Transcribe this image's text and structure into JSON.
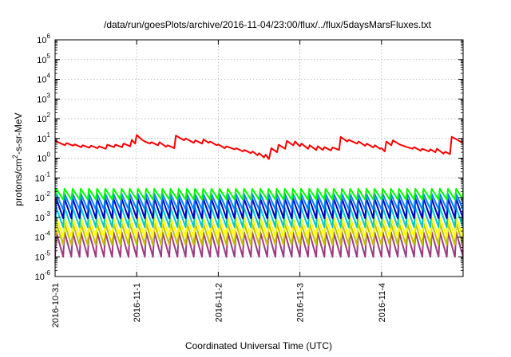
{
  "chart_data": {
    "type": "line",
    "title": "/data/run/goesPlots/archive/2016-11-04/23:00/flux/../flux/5daysMarsFluxes.txt",
    "xlabel": "Coordinated Universal Time (UTC)",
    "ylabel_parts": [
      "protons/cm",
      "2",
      "-s-sr-MeV"
    ],
    "yscale": "log",
    "ylim_exp": [
      -6,
      6
    ],
    "y_ticks": [
      {
        "base": "10",
        "exp": "-6"
      },
      {
        "base": "10",
        "exp": "-5"
      },
      {
        "base": "10",
        "exp": "-4"
      },
      {
        "base": "10",
        "exp": "-3"
      },
      {
        "base": "10",
        "exp": "-2"
      },
      {
        "base": "10",
        "exp": "-1"
      },
      {
        "base": "10",
        "exp": "0"
      },
      {
        "base": "10",
        "exp": "1"
      },
      {
        "base": "10",
        "exp": "2"
      },
      {
        "base": "10",
        "exp": "3"
      },
      {
        "base": "10",
        "exp": "4"
      },
      {
        "base": "10",
        "exp": "5"
      },
      {
        "base": "10",
        "exp": "6"
      }
    ],
    "x_unit": "day",
    "xlim": [
      0,
      5
    ],
    "x_ticks": [
      {
        "value": 0,
        "label": "2016-10-31"
      },
      {
        "value": 1,
        "label": "2016-11-1"
      },
      {
        "value": 2,
        "label": "2016-11-2"
      },
      {
        "value": 3,
        "label": "2016-11-3"
      },
      {
        "value": 4,
        "label": "2016-11-4"
      }
    ],
    "grid": true,
    "series": [
      {
        "color": "#ff0000",
        "points": [
          [
            0.0,
            7.5
          ],
          [
            0.12,
            4.5
          ],
          [
            0.14,
            5.8
          ],
          [
            0.22,
            4.3
          ],
          [
            0.24,
            5.0
          ],
          [
            0.32,
            3.6
          ],
          [
            0.34,
            4.5
          ],
          [
            0.42,
            3.4
          ],
          [
            0.44,
            4.3
          ],
          [
            0.52,
            3.2
          ],
          [
            0.54,
            4.0
          ],
          [
            0.62,
            3.0
          ],
          [
            0.64,
            4.8
          ],
          [
            0.72,
            3.6
          ],
          [
            0.74,
            4.8
          ],
          [
            0.82,
            3.6
          ],
          [
            0.84,
            5.5
          ],
          [
            0.92,
            4.0
          ],
          [
            0.94,
            8.5
          ],
          [
            0.98,
            5.5
          ],
          [
            1.0,
            15
          ],
          [
            1.06,
            9.0
          ],
          [
            1.1,
            7.0
          ],
          [
            1.16,
            5.5
          ],
          [
            1.18,
            6.5
          ],
          [
            1.26,
            4.5
          ],
          [
            1.28,
            6.5
          ],
          [
            1.36,
            3.8
          ],
          [
            1.38,
            4.5
          ],
          [
            1.46,
            3.2
          ],
          [
            1.48,
            14
          ],
          [
            1.58,
            8.0
          ],
          [
            1.6,
            10
          ],
          [
            1.7,
            6.0
          ],
          [
            1.72,
            8.0
          ],
          [
            1.8,
            5.5
          ],
          [
            1.82,
            9.0
          ],
          [
            1.88,
            6.0
          ],
          [
            1.9,
            7.0
          ],
          [
            1.98,
            4.5
          ],
          [
            2.0,
            5.0
          ],
          [
            2.08,
            3.2
          ],
          [
            2.1,
            4.0
          ],
          [
            2.2,
            2.8
          ],
          [
            2.22,
            3.2
          ],
          [
            2.3,
            2.2
          ],
          [
            2.32,
            2.6
          ],
          [
            2.4,
            1.8
          ],
          [
            2.42,
            2.2
          ],
          [
            2.48,
            1.4
          ],
          [
            2.5,
            1.8
          ],
          [
            2.56,
            1.1
          ],
          [
            2.58,
            1.5
          ],
          [
            2.62,
            0.9
          ],
          [
            2.65,
            3.2
          ],
          [
            2.72,
            2.0
          ],
          [
            2.74,
            4.8
          ],
          [
            2.82,
            3.0
          ],
          [
            2.84,
            7.5
          ],
          [
            2.92,
            4.5
          ],
          [
            2.94,
            7.0
          ],
          [
            3.0,
            4.0
          ],
          [
            3.02,
            5.5
          ],
          [
            3.1,
            3.0
          ],
          [
            3.12,
            4.5
          ],
          [
            3.2,
            2.6
          ],
          [
            3.22,
            4.0
          ],
          [
            3.28,
            2.6
          ],
          [
            3.3,
            3.6
          ],
          [
            3.38,
            2.5
          ],
          [
            3.4,
            3.5
          ],
          [
            3.48,
            2.6
          ],
          [
            3.5,
            12
          ],
          [
            3.58,
            7.0
          ],
          [
            3.6,
            8.5
          ],
          [
            3.7,
            5.5
          ],
          [
            3.72,
            7.0
          ],
          [
            3.8,
            4.2
          ],
          [
            3.82,
            5.5
          ],
          [
            3.9,
            3.5
          ],
          [
            3.92,
            4.5
          ],
          [
            3.98,
            3.0
          ],
          [
            4.0,
            3.2
          ],
          [
            4.04,
            2.2
          ],
          [
            4.06,
            7.0
          ],
          [
            4.12,
            4.5
          ],
          [
            4.14,
            8.0
          ],
          [
            4.22,
            5.0
          ],
          [
            4.3,
            3.8
          ],
          [
            4.38,
            3.0
          ],
          [
            4.4,
            3.6
          ],
          [
            4.48,
            2.4
          ],
          [
            4.5,
            3.0
          ],
          [
            4.58,
            2.2
          ],
          [
            4.6,
            2.8
          ],
          [
            4.66,
            2.0
          ],
          [
            4.68,
            3.0
          ],
          [
            4.76,
            1.7
          ],
          [
            4.78,
            2.1
          ],
          [
            4.84,
            1.6
          ],
          [
            4.86,
            12
          ],
          [
            4.92,
            9.0
          ],
          [
            5.0,
            5.8
          ]
        ]
      },
      {
        "color": "#00ff00",
        "model": "sawtooth",
        "peak_exp": -1.55,
        "trough_exp": -2.1
      },
      {
        "color": "#0080ff",
        "model": "sawtooth",
        "peak_exp": -1.8,
        "trough_exp": -2.6
      },
      {
        "color": "#0000c0",
        "model": "sawtooth",
        "peak_exp": -2.05,
        "trough_exp": -3.05
      },
      {
        "color": "#00c8c8",
        "model": "sawtooth",
        "peak_exp": -2.5,
        "trough_exp": -3.5
      },
      {
        "color": "#ffff00",
        "model": "sawtooth",
        "peak_exp": -3.0,
        "trough_exp": -4.0
      },
      {
        "color": "#c0c000",
        "model": "sawtooth",
        "peak_exp": -3.3,
        "trough_exp": -4.4
      },
      {
        "color": "#9b3b7f",
        "model": "sawtooth",
        "peak_exp": -3.75,
        "trough_exp": -5.0
      }
    ]
  }
}
